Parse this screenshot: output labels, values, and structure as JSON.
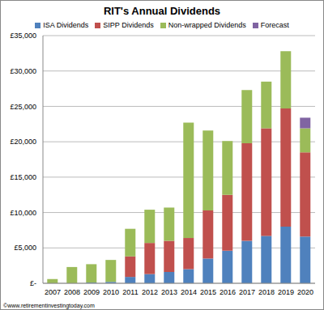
{
  "chart_data": {
    "type": "bar",
    "title": "RIT's Annual Dividends",
    "categories": [
      "2007",
      "2008",
      "2009",
      "2010",
      "2011",
      "2012",
      "2013",
      "2014",
      "2015",
      "2016",
      "2017",
      "2018",
      "2019",
      "2020"
    ],
    "series": [
      {
        "name": "ISA Dividends",
        "color": "#4f81bd",
        "values": [
          0,
          0,
          100,
          200,
          900,
          1300,
          1600,
          2000,
          3500,
          4600,
          6000,
          6700,
          8000,
          6600
        ]
      },
      {
        "name": "SIPP Dividends",
        "color": "#c0504d",
        "values": [
          0,
          0,
          0,
          0,
          2900,
          4400,
          4400,
          4400,
          6800,
          7900,
          13800,
          15200,
          16700,
          11900
        ]
      },
      {
        "name": "Non-wrapped Dividends",
        "color": "#9bbb59",
        "values": [
          600,
          2300,
          2600,
          3100,
          3900,
          4700,
          4700,
          16300,
          11300,
          7600,
          7500,
          6600,
          8100,
          3400
        ]
      },
      {
        "name": "Forecast",
        "color": "#8064a2",
        "values": [
          0,
          0,
          0,
          0,
          0,
          0,
          0,
          0,
          0,
          0,
          0,
          0,
          0,
          1500
        ]
      }
    ],
    "stacked": true,
    "ylim": [
      0,
      35000
    ],
    "yticks": [
      {
        "value": 0,
        "label": "£-"
      },
      {
        "value": 5000,
        "label": "£5,000"
      },
      {
        "value": 10000,
        "label": "£10,000"
      },
      {
        "value": 15000,
        "label": "£15,000"
      },
      {
        "value": 20000,
        "label": "£20,000"
      },
      {
        "value": 25000,
        "label": "£25,000"
      },
      {
        "value": 30000,
        "label": "£30,000"
      },
      {
        "value": 35000,
        "label": "£35,000"
      }
    ],
    "grid": true,
    "legend": "top",
    "annotations": [
      "©www.retirementinvestingtoday.com"
    ]
  }
}
